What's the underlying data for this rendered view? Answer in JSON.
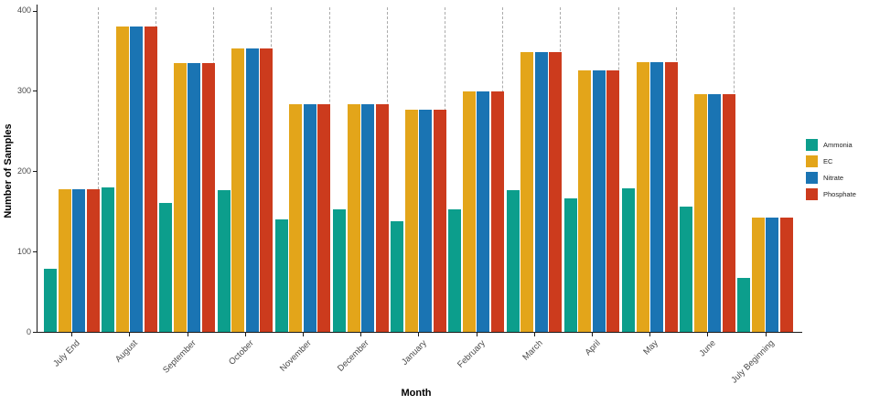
{
  "chart_data": {
    "type": "bar",
    "title": "",
    "xlabel": "Month",
    "ylabel": "Number of Samples",
    "categories": [
      "July End",
      "August",
      "September",
      "October",
      "November",
      "December",
      "January",
      "February",
      "March",
      "April",
      "May",
      "June",
      "July Beginning"
    ],
    "series": [
      {
        "name": "Ammonia",
        "color": "#0C9E8C",
        "values": [
          78,
          180,
          160,
          176,
          140,
          153,
          138,
          152,
          176,
          166,
          179,
          156,
          67
        ]
      },
      {
        "name": "EC",
        "color": "#E3A51A",
        "values": [
          178,
          380,
          334,
          353,
          283,
          283,
          277,
          299,
          348,
          325,
          336,
          296,
          142
        ]
      },
      {
        "name": "Nitrate",
        "color": "#1A74B3",
        "values": [
          178,
          380,
          334,
          353,
          283,
          283,
          277,
          299,
          348,
          325,
          336,
          296,
          142
        ]
      },
      {
        "name": "Phosphate",
        "color": "#CC3B1D",
        "values": [
          178,
          380,
          334,
          353,
          283,
          283,
          277,
          299,
          348,
          325,
          336,
          296,
          142
        ]
      }
    ],
    "y_ticks": [
      0,
      100,
      200,
      300,
      400
    ],
    "ylim": [
      0,
      400
    ],
    "legend_position": "right",
    "grid": "dashed-vertical-group-separators",
    "separator_color": "#ababab",
    "background": "#ffffff"
  }
}
